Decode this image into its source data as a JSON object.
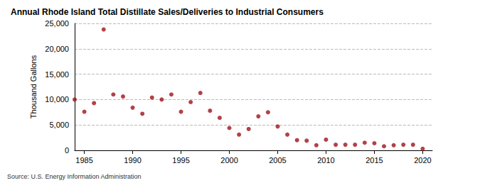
{
  "chart_data": {
    "type": "scatter",
    "title": "Annual Rhode Island Total Distillate Sales/Deliveries to Industrial Consumers",
    "y_label": "Thousand Gallons",
    "source": "Source: U.S. Energy Information Administration",
    "x": [
      1984,
      1985,
      1986,
      1987,
      1988,
      1989,
      1990,
      1991,
      1992,
      1993,
      1994,
      1995,
      1996,
      1997,
      1998,
      1999,
      2000,
      2001,
      2002,
      2003,
      2004,
      2005,
      2006,
      2007,
      2008,
      2009,
      2010,
      2011,
      2012,
      2013,
      2014,
      2015,
      2016,
      2017,
      2018,
      2019,
      2020
    ],
    "values": [
      10000,
      7600,
      9300,
      23800,
      11000,
      10600,
      8400,
      7200,
      10400,
      10000,
      11000,
      7600,
      9500,
      11300,
      7800,
      6400,
      4400,
      3100,
      4200,
      6700,
      7500,
      4700,
      3100,
      2000,
      1900,
      1000,
      2100,
      1100,
      1100,
      1100,
      1500,
      1400,
      800,
      1000,
      1100,
      1100,
      300
    ],
    "color": "#a0121a",
    "marker": "circle",
    "xlim": [
      1984,
      2021
    ],
    "xticks": [
      1985,
      1990,
      1995,
      2000,
      2005,
      2010,
      2015,
      2020
    ],
    "ylim": [
      0,
      25000
    ],
    "yticks": [
      0,
      {
        "value": 5000,
        "label": "5,000"
      },
      {
        "value": 10000,
        "label": "10,000"
      },
      {
        "value": 15000,
        "label": "15,000"
      },
      {
        "value": 20000,
        "label": "20,000"
      },
      {
        "value": 25000,
        "label": "25,000"
      }
    ],
    "grid": true
  }
}
